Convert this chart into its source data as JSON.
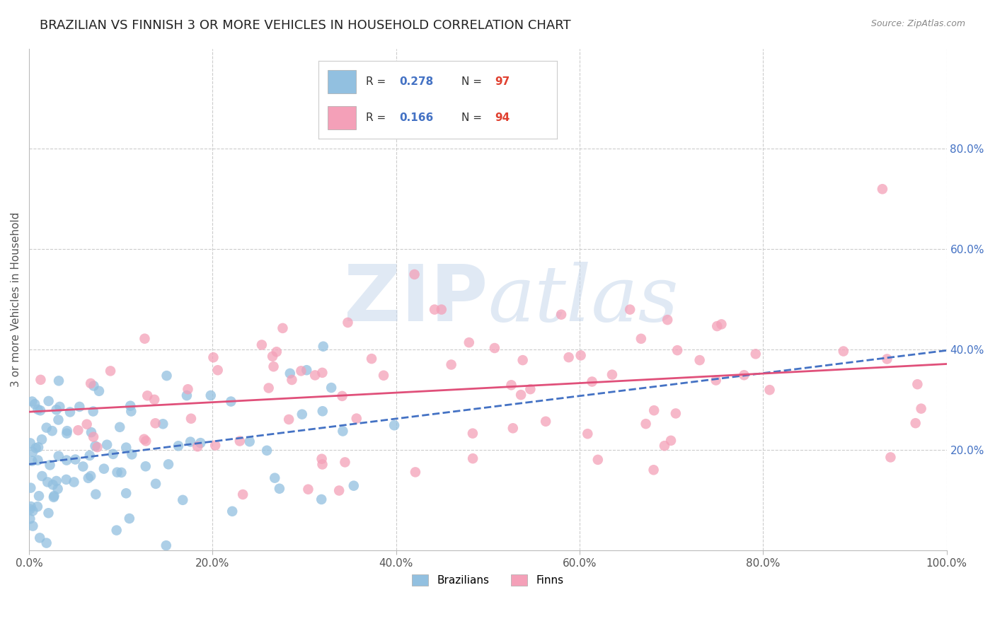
{
  "title": "BRAZILIAN VS FINNISH 3 OR MORE VEHICLES IN HOUSEHOLD CORRELATION CHART",
  "source": "Source: ZipAtlas.com",
  "ylabel": "3 or more Vehicles in Household",
  "watermark": "ZIPatlas",
  "brazil_r": 0.278,
  "brazil_n": 97,
  "finn_r": 0.166,
  "finn_n": 94,
  "xlim": [
    0.0,
    1.0
  ],
  "ylim": [
    0.0,
    1.0
  ],
  "xticks": [
    0.0,
    0.2,
    0.4,
    0.6,
    0.8,
    1.0
  ],
  "yticks": [
    0.2,
    0.4,
    0.6,
    0.8
  ],
  "xticklabels": [
    "0.0%",
    "20.0%",
    "40.0%",
    "60.0%",
    "80.0%",
    "100.0%"
  ],
  "yticklabels": [
    "20.0%",
    "40.0%",
    "60.0%",
    "80.0%"
  ],
  "right_ytick_color": "#4472c4",
  "title_fontsize": 13,
  "axis_label_fontsize": 11,
  "tick_fontsize": 11,
  "brazil_color": "#92c0e0",
  "finn_color": "#f4a0b8",
  "brazil_line_color": "#4472c4",
  "finn_line_color": "#e0507a",
  "background_color": "#ffffff",
  "grid_color": "#cccccc",
  "watermark_color": "#c8d8ec"
}
